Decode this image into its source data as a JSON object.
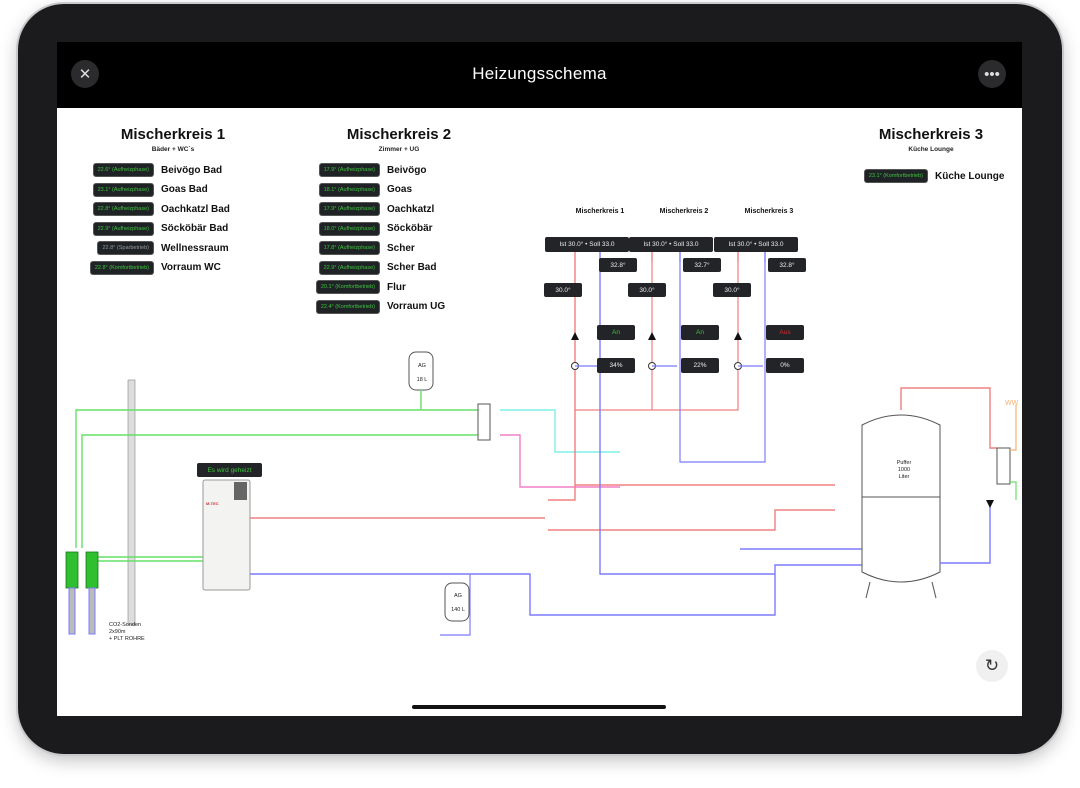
{
  "header": {
    "title": "Heizungsschema",
    "close_icon": "close-icon",
    "more_icon": "more-icon"
  },
  "colors": {
    "flow": "#f08080",
    "return": "#7b7bff",
    "brine": "#66e066",
    "cyan": "#80f0e8",
    "pink": "#f080c8",
    "hotwater": "#f5b070",
    "status_green": "#3ec43e",
    "status_red": "#d03030"
  },
  "groups": [
    {
      "title": "Mischerkreis 1",
      "subtitle": "Bäder + WC´s",
      "rooms": [
        {
          "status": "22.6° (Aufheizphase)",
          "name": "Beivögo Bad"
        },
        {
          "status": "23.1° (Aufheizphase)",
          "name": "Goas Bad"
        },
        {
          "status": "22.8° (Aufheizphase)",
          "name": "Oachkatzl Bad"
        },
        {
          "status": "22.9° (Aufheizphase)",
          "name": "Söcköbär Bad"
        },
        {
          "status": "22.8° (Sparbetrieb)",
          "name": "Wellnessraum",
          "inactive": true
        },
        {
          "status": "22.8° (Komfortbetrieb)",
          "name": "Vorraum WC"
        }
      ]
    },
    {
      "title": "Mischerkreis 2",
      "subtitle": "Zimmer + UG",
      "rooms": [
        {
          "status": "17.9° (Aufheizphase)",
          "name": "Beivögo"
        },
        {
          "status": "18.1° (Aufheizphase)",
          "name": "Goas"
        },
        {
          "status": "17.9° (Aufheizphase)",
          "name": "Oachkatzl"
        },
        {
          "status": "18.0° (Aufheizphase)",
          "name": "Söcköbär"
        },
        {
          "status": "17.8° (Aufheizphase)",
          "name": "Scher"
        },
        {
          "status": "22.9° (Aufheizphase)",
          "name": "Scher Bad"
        },
        {
          "status": "20.1° (Komfortbetrieb)",
          "name": "Flur"
        },
        {
          "status": "22.4° (Komfortbetrieb)",
          "name": "Vorraum UG"
        }
      ]
    },
    {
      "title": "Mischerkreis 3",
      "subtitle": "Küche Lounge",
      "rooms": [
        {
          "status": "23.1° (Komfortbetrieb)",
          "name": "Küche Lounge"
        }
      ]
    }
  ],
  "mixers": [
    {
      "label": "Mischerkreis 1",
      "setpoint": "Ist 30.0° • Soll 33.0",
      "return_temp": "32.8°",
      "flow_temp": "30.0°",
      "pump": "An",
      "pump_on": true,
      "valve": "34%"
    },
    {
      "label": "Mischerkreis 2",
      "setpoint": "Ist 30.0° • Soll 33.0",
      "return_temp": "32.7°",
      "flow_temp": "30.0°",
      "pump": "An",
      "pump_on": true,
      "valve": "22%"
    },
    {
      "label": "Mischerkreis 3",
      "setpoint": "Ist 30.0° • Soll 33.0",
      "return_temp": "32.8°",
      "flow_temp": "30.0°",
      "pump": "Aus",
      "pump_on": false,
      "valve": "0%"
    }
  ],
  "schema": {
    "heatpump_status": "Es wird geheizt",
    "heatpump_brand": "M-TEC",
    "expansion_small": {
      "top": "AG",
      "bottom": "18 L"
    },
    "expansion_large": {
      "top": "AG",
      "bottom": "140 L"
    },
    "probe_label": [
      "CO2-Sonden",
      "2x90m",
      "+ PLT ROHRE"
    ],
    "buffer_label": [
      "Puffer",
      "1000",
      "Liter"
    ],
    "hotwater_label": "WW"
  },
  "reset_icon": "reset-icon"
}
